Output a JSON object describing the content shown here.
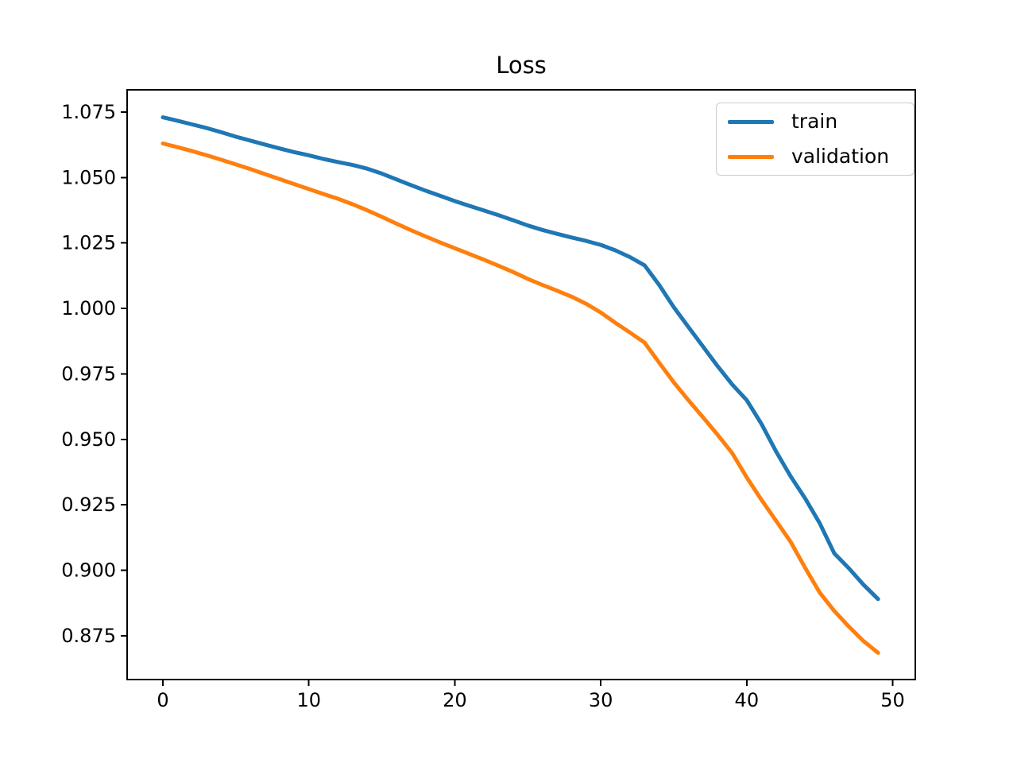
{
  "chart_data": {
    "type": "line",
    "title": "Loss",
    "xlabel": "",
    "ylabel": "",
    "grid": false,
    "legend": {
      "position": "upper right",
      "entries": [
        "train",
        "validation"
      ]
    },
    "xlim": [
      -2.45,
      51.55
    ],
    "ylim": [
      0.8583,
      1.0835
    ],
    "xticks": [
      "0",
      "10",
      "20",
      "30",
      "40",
      "50"
    ],
    "yticks": [
      "0.875",
      "0.900",
      "0.925",
      "0.950",
      "0.975",
      "1.000",
      "1.025",
      "1.050",
      "1.075"
    ],
    "x": [
      0,
      1,
      2,
      3,
      4,
      5,
      6,
      7,
      8,
      9,
      10,
      11,
      12,
      13,
      14,
      15,
      16,
      17,
      18,
      19,
      20,
      21,
      22,
      23,
      24,
      25,
      26,
      27,
      28,
      29,
      30,
      31,
      32,
      33,
      34,
      35,
      36,
      37,
      38,
      39,
      40,
      41,
      42,
      43,
      44,
      45,
      46,
      47,
      48,
      49
    ],
    "series": [
      {
        "name": "train",
        "color": "#1f77b4",
        "values": [
          1.073,
          1.0717,
          1.0703,
          1.0689,
          1.0673,
          1.0656,
          1.0641,
          1.0626,
          1.0611,
          1.0597,
          1.0585,
          1.0571,
          1.0559,
          1.0548,
          1.0534,
          1.0515,
          1.0493,
          1.0471,
          1.045,
          1.043,
          1.041,
          1.0392,
          1.0374,
          1.0356,
          1.0337,
          1.0317,
          1.03,
          1.0285,
          1.0271,
          1.0258,
          1.0243,
          1.0222,
          1.0196,
          1.0165,
          1.009,
          1.0005,
          0.993,
          0.9855,
          0.978,
          0.971,
          0.965,
          0.956,
          0.9455,
          0.936,
          0.9275,
          0.918,
          0.9065,
          0.9008,
          0.8945,
          0.889
        ]
      },
      {
        "name": "validation",
        "color": "#ff7f0e",
        "values": [
          1.063,
          1.0616,
          1.0601,
          1.0585,
          1.0568,
          1.055,
          1.0532,
          1.0513,
          1.0494,
          1.0475,
          1.0456,
          1.0437,
          1.0419,
          1.0398,
          1.0375,
          1.035,
          1.0324,
          1.0299,
          1.0275,
          1.0252,
          1.023,
          1.0208,
          1.0186,
          1.0163,
          1.0139,
          1.0113,
          1.009,
          1.0068,
          1.0045,
          1.0018,
          0.9985,
          0.9945,
          0.9908,
          0.987,
          0.9793,
          0.9718,
          0.965,
          0.9585,
          0.9518,
          0.9448,
          0.9355,
          0.927,
          0.919,
          0.911,
          0.901,
          0.8915,
          0.8845,
          0.8785,
          0.873,
          0.8685
        ]
      }
    ]
  }
}
